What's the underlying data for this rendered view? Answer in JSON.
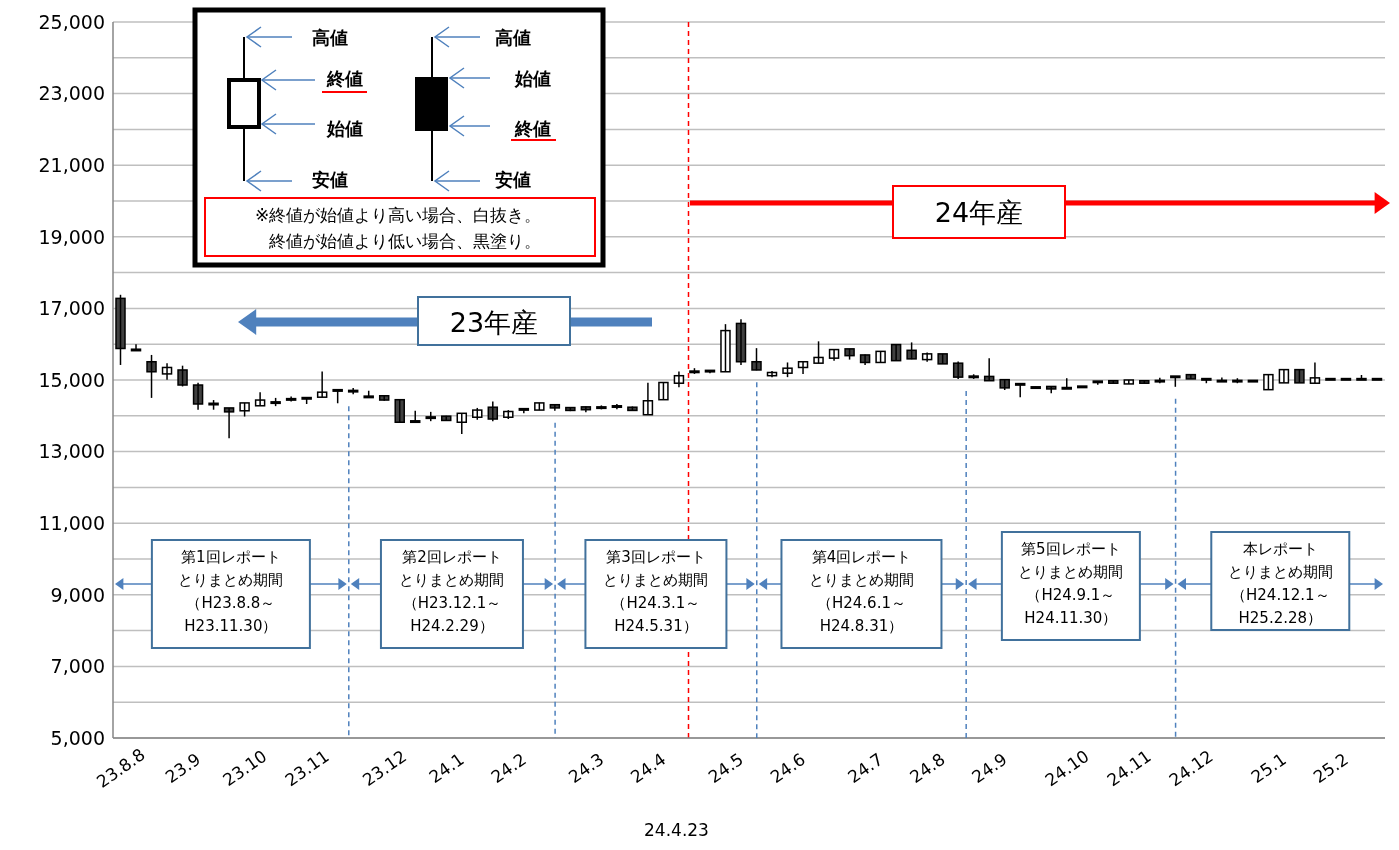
{
  "chart_data": {
    "type": "candlestick",
    "colors": [
      "#404040",
      "#404040",
      "#404040",
      "#ffffff",
      "#404040",
      "#404040",
      "#404040",
      "#404040",
      "#ffffff",
      "#ffffff",
      "#404040",
      "#404040",
      "#404040",
      "#ffffff",
      "#404040",
      "#404040",
      "#404040",
      "#404040",
      "#404040",
      "#404040",
      "#404040",
      "#404040",
      "#ffffff",
      "#ffffff",
      "#404040",
      "#ffffff",
      "#404040",
      "#ffffff",
      "#404040",
      "#404040",
      "#404040",
      "#404040",
      "#404040",
      "#404040",
      "#ffffff",
      "#ffffff",
      "#ffffff",
      "#404040",
      "#404040",
      "#ffffff",
      "#404040",
      "#404040",
      "#ffffff",
      "#ffffff",
      "#ffffff",
      "#ffffff",
      "#ffffff",
      "#404040",
      "#404040",
      "#ffffff",
      "#404040",
      "#404040",
      "#ffffff",
      "#404040",
      "#404040",
      "#404040",
      "#404040",
      "#404040",
      "#404040",
      "#404040",
      "#404040",
      "#404040",
      "#404040",
      "#404040",
      "#404040",
      "#ffffff",
      "#404040",
      "#404040",
      "#404040",
      "#404040",
      "#404040",
      "#404040",
      "#404040",
      "#404040",
      "#ffffff",
      "#ffffff",
      "#404040",
      "#ffffff",
      "#404040",
      "#404040",
      "#404040",
      "#404040"
    ],
    "categories": [
      "23.8.8",
      null,
      null,
      null,
      "23.9",
      null,
      null,
      null,
      "23.10",
      null,
      null,
      null,
      "23.11",
      null,
      null,
      null,
      null,
      "23.12",
      null,
      null,
      null,
      "24.1",
      null,
      null,
      null,
      "24.2",
      null,
      null,
      null,
      null,
      "24.3",
      null,
      null,
      null,
      "24.4",
      null,
      null,
      null,
      null,
      "24.5",
      null,
      null,
      null,
      "24.6",
      null,
      null,
      null,
      null,
      "24.7",
      null,
      null,
      null,
      "24.8",
      null,
      null,
      null,
      "24.9",
      null,
      null,
      null,
      null,
      "24.10",
      null,
      null,
      null,
      "24.11",
      null,
      null,
      null,
      "24.12",
      null,
      null,
      null,
      null,
      "25.1",
      null,
      null,
      null,
      "25.2",
      null,
      null,
      null
    ],
    "ohlc": [
      [
        17280,
        17380,
        15420,
        15880
      ],
      [
        15860,
        16000,
        15830,
        15840
      ],
      [
        15510,
        15700,
        14500,
        15230
      ],
      [
        15170,
        15470,
        15010,
        15350
      ],
      [
        15280,
        15400,
        14820,
        14860
      ],
      [
        14860,
        14920,
        14170,
        14330
      ],
      [
        14350,
        14440,
        14170,
        14330
      ],
      [
        14220,
        14220,
        13370,
        14110
      ],
      [
        14140,
        14360,
        13980,
        14360
      ],
      [
        14280,
        14660,
        14280,
        14440
      ],
      [
        14390,
        14500,
        14270,
        14370
      ],
      [
        14480,
        14540,
        14400,
        14460
      ],
      [
        14510,
        14520,
        14330,
        14490
      ],
      [
        14520,
        15240,
        14520,
        14660
      ],
      [
        14730,
        14740,
        14350,
        14710
      ],
      [
        14710,
        14780,
        14600,
        14690
      ],
      [
        14550,
        14700,
        14530,
        14530
      ],
      [
        14560,
        14580,
        14420,
        14440
      ],
      [
        14450,
        14450,
        13820,
        13820
      ],
      [
        13860,
        14140,
        13840,
        13840
      ],
      [
        13970,
        14110,
        13850,
        13950
      ],
      [
        13990,
        14000,
        13860,
        13870
      ],
      [
        13820,
        14070,
        13490,
        14070
      ],
      [
        13960,
        14220,
        13890,
        14160
      ],
      [
        14240,
        14400,
        13850,
        13910
      ],
      [
        13960,
        14160,
        13910,
        14120
      ],
      [
        14200,
        14210,
        14070,
        14180
      ],
      [
        14160,
        14360,
        14160,
        14360
      ],
      [
        14310,
        14320,
        14140,
        14220
      ],
      [
        14230,
        14240,
        14130,
        14150
      ],
      [
        14250,
        14260,
        14100,
        14170
      ],
      [
        14250,
        14290,
        14180,
        14230
      ],
      [
        14280,
        14330,
        14180,
        14260
      ],
      [
        14240,
        14260,
        14150,
        14150
      ],
      [
        14030,
        14920,
        14030,
        14420
      ],
      [
        14450,
        14930,
        14450,
        14930
      ],
      [
        14910,
        15240,
        14800,
        15120
      ],
      [
        15250,
        15330,
        15170,
        15230
      ],
      [
        15270,
        15280,
        15190,
        15250
      ],
      [
        15230,
        16560,
        15230,
        16380
      ],
      [
        16580,
        16700,
        15420,
        15510
      ],
      [
        15510,
        15890,
        15270,
        15280
      ],
      [
        15120,
        15250,
        15080,
        15210
      ],
      [
        15190,
        15490,
        15080,
        15330
      ],
      [
        15350,
        15510,
        15170,
        15510
      ],
      [
        15470,
        16080,
        15470,
        15630
      ],
      [
        15610,
        15850,
        15540,
        15850
      ],
      [
        15870,
        15870,
        15570,
        15680
      ],
      [
        15700,
        15710,
        15420,
        15490
      ],
      [
        15490,
        15800,
        15490,
        15800
      ],
      [
        15990,
        15990,
        15540,
        15540
      ],
      [
        15830,
        16050,
        15580,
        15590
      ],
      [
        15570,
        15770,
        15510,
        15730
      ],
      [
        15730,
        15730,
        15450,
        15450
      ],
      [
        15470,
        15520,
        15030,
        15080
      ],
      [
        15110,
        15160,
        15030,
        15090
      ],
      [
        15100,
        15610,
        14980,
        14980
      ],
      [
        15010,
        15010,
        14720,
        14780
      ],
      [
        14900,
        14900,
        14520,
        14880
      ],
      [
        14810,
        14810,
        14790,
        14790
      ],
      [
        14820,
        14820,
        14630,
        14750
      ],
      [
        14790,
        15050,
        14770,
        14770
      ],
      [
        14830,
        14830,
        14810,
        14810
      ],
      [
        14970,
        14970,
        14870,
        14950
      ],
      [
        14980,
        14980,
        14910,
        14910
      ],
      [
        14890,
        15000,
        14890,
        15000
      ],
      [
        14980,
        14980,
        14910,
        14910
      ],
      [
        14990,
        15060,
        14910,
        14970
      ],
      [
        15110,
        15110,
        14810,
        15090
      ],
      [
        15150,
        15150,
        15030,
        15030
      ],
      [
        15040,
        15040,
        14910,
        15020
      ],
      [
        14990,
        15070,
        14970,
        14970
      ],
      [
        14990,
        15050,
        14910,
        14970
      ],
      [
        14990,
        14990,
        14970,
        14970
      ],
      [
        14730,
        15150,
        14730,
        15150
      ],
      [
        14920,
        15290,
        14920,
        15290
      ],
      [
        15290,
        15290,
        14920,
        14920
      ],
      [
        14910,
        15490,
        14910,
        15060
      ],
      [
        15040,
        15040,
        15020,
        15020
      ],
      [
        15040,
        15040,
        15020,
        15020
      ],
      [
        15040,
        15140,
        15020,
        15020
      ],
      [
        15040,
        15040,
        15020,
        15020
      ]
    ],
    "ylim": [
      5000,
      25000
    ],
    "yticks": [
      {
        "value": 5000,
        "label": "5,000"
      },
      {
        "value": 6000,
        "label": null
      },
      {
        "value": 7000,
        "label": "7,000"
      },
      {
        "value": 8000,
        "label": null
      },
      {
        "value": 9000,
        "label": "9,000"
      },
      {
        "value": 10000,
        "label": null
      },
      {
        "value": 11000,
        "label": "11,000"
      },
      {
        "value": 12000,
        "label": null
      },
      {
        "value": 13000,
        "label": "13,000"
      },
      {
        "value": 14000,
        "label": null
      },
      {
        "value": 15000,
        "label": "15,000"
      },
      {
        "value": 16000,
        "label": null
      },
      {
        "value": 17000,
        "label": "17,000"
      },
      {
        "value": 18000,
        "label": null
      },
      {
        "value": 19000,
        "label": "19,000"
      },
      {
        "value": 20000,
        "label": null
      },
      {
        "value": 21000,
        "label": "21,000"
      },
      {
        "value": 22000,
        "label": null
      },
      {
        "value": 23000,
        "label": "23,000"
      },
      {
        "value": 24000,
        "label": null
      },
      {
        "value": 25000,
        "label": "25,000"
      }
    ],
    "grid": "y",
    "annotations": [
      "高値",
      "終値",
      "始値",
      "安値",
      "高値",
      "始値",
      "終値",
      "安値",
      "※終値が始値より高い場合、白抜き。",
      "終値が始値より低い場合、黒塗り。",
      "23年産",
      "24年産",
      "第1回レポートとりまとめ期間（H23.8.8～H23.11.30）",
      "第2回レポートとりまとめ期間（H23.12.1～H24.2.29）",
      "第3回レポートとりまとめ期間（H24.3.1～H24.5.31）",
      "第4回レポートとりまとめ期間（H24.6.1～H24.8.31）",
      "第5回レポートとりまとめ期間（H24.9.1～H24.11.30）",
      "本レポートとりまとめ期間（H24.12.1～H25.2.28）",
      "24.4.23"
    ]
  }
}
